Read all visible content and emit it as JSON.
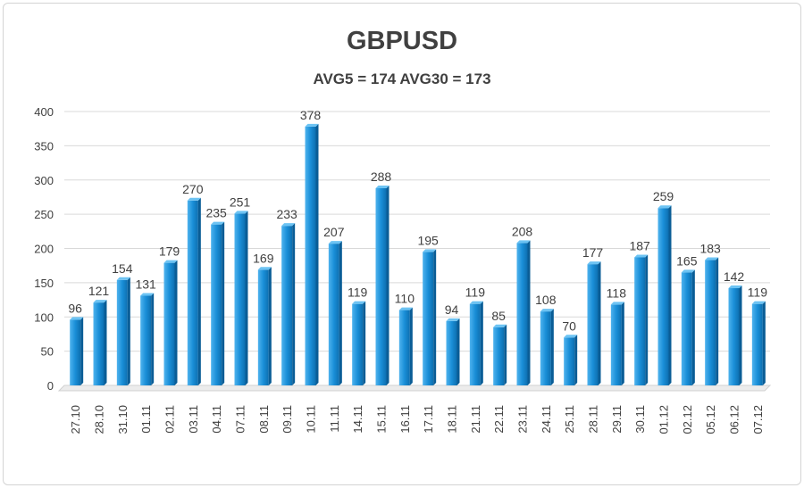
{
  "chart_data": {
    "type": "bar",
    "title": "GBPUSD",
    "subtitle": "AVG5 = 174 AVG30 = 173",
    "xlabel": "",
    "ylabel": "",
    "ylim": [
      0,
      400
    ],
    "yticks": [
      0,
      50,
      100,
      150,
      200,
      250,
      300,
      350,
      400
    ],
    "grid": true,
    "legend": "none",
    "bar_color": "#1a8fd8",
    "categories": [
      "27.10",
      "28.10",
      "31.10",
      "01.11",
      "02.11",
      "03.11",
      "04.11",
      "07.11",
      "08.11",
      "09.11",
      "10.11",
      "11.11",
      "14.11",
      "15.11",
      "16.11",
      "17.11",
      "18.11",
      "21.11",
      "22.11",
      "23.11",
      "24.11",
      "25.11",
      "28.11",
      "29.11",
      "30.11",
      "01.12",
      "02.12",
      "05.12",
      "06.12",
      "07.12"
    ],
    "values": [
      96,
      121,
      154,
      131,
      179,
      270,
      235,
      251,
      169,
      233,
      378,
      207,
      119,
      288,
      110,
      195,
      94,
      119,
      85,
      208,
      108,
      70,
      177,
      118,
      187,
      259,
      165,
      183,
      142,
      119
    ]
  }
}
